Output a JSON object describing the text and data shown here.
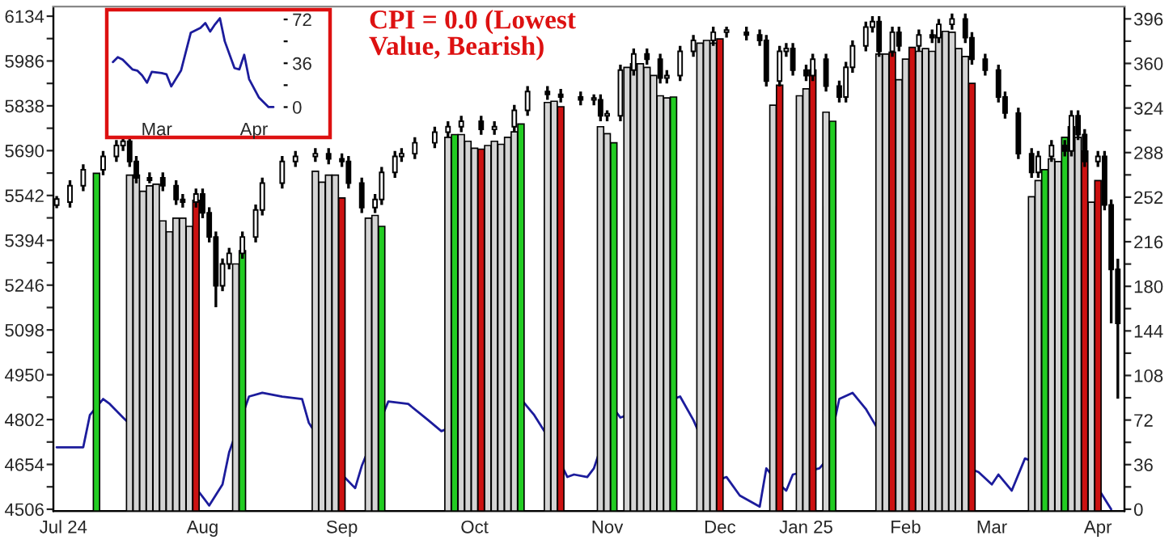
{
  "chart_data": [
    {
      "type": "candlestick",
      "annotations": [
        "CPI = 0.0 (Lowest\nValue, Bearish)"
      ],
      "categories": [
        null,
        "Jul 24",
        null,
        null,
        null,
        null,
        null,
        null,
        null,
        null,
        null,
        null,
        null,
        null,
        null,
        null,
        null,
        null,
        null,
        null,
        null,
        null,
        "Aug",
        null,
        null,
        null,
        null,
        null,
        null,
        null,
        null,
        null,
        null,
        null,
        null,
        null,
        null,
        null,
        null,
        null,
        null,
        null,
        null,
        "Sep",
        null,
        null,
        null,
        null,
        null,
        null,
        null,
        null,
        null,
        null,
        null,
        null,
        null,
        null,
        null,
        null,
        null,
        null,
        null,
        "Oct",
        null,
        null,
        null,
        null,
        null,
        null,
        null,
        null,
        null,
        null,
        null,
        null,
        null,
        null,
        null,
        null,
        null,
        null,
        null,
        "Nov",
        null,
        null,
        null,
        null,
        null,
        null,
        null,
        null,
        null,
        null,
        null,
        null,
        null,
        null,
        null,
        null,
        "Dec",
        null,
        null,
        null,
        null,
        null,
        null,
        null,
        null,
        null,
        null,
        null,
        null,
        "Jan 25",
        null,
        null,
        null,
        null,
        null,
        null,
        null,
        null,
        null,
        null,
        null,
        null,
        null,
        null,
        "Feb",
        null,
        null,
        null,
        null,
        null,
        null,
        null,
        null,
        null,
        null,
        null,
        null,
        "Mar",
        null,
        null,
        null,
        null,
        null,
        null,
        null,
        null,
        null,
        null,
        null,
        null,
        null,
        null,
        null,
        "Apr",
        null,
        null,
        null,
        null
      ],
      "ylim": [
        4500,
        6166
      ],
      "yticks": [
        4506,
        {
          "value": 4580,
          "label": null
        },
        4654,
        {
          "value": 4728,
          "label": null
        },
        4802,
        {
          "value": 4876,
          "label": null
        },
        4950,
        {
          "value": 5024,
          "label": null
        },
        5098,
        {
          "value": 5172,
          "label": null
        },
        5246,
        {
          "value": 5320,
          "label": null
        },
        5394,
        {
          "value": 5468,
          "label": null
        },
        5542,
        {
          "value": 5616,
          "label": null
        },
        5690,
        {
          "value": 5764,
          "label": null
        },
        5838,
        {
          "value": 5912,
          "label": null
        },
        5986,
        {
          "value": 6060,
          "label": null
        },
        6134
      ],
      "y2lim": [
        -1.5,
        406
      ],
      "y2ticks": [
        0,
        {
          "value": 18,
          "label": null
        },
        36,
        {
          "value": 54,
          "label": null
        },
        72,
        {
          "value": 90,
          "label": null
        },
        108,
        {
          "value": 126,
          "label": null
        },
        144,
        {
          "value": 162,
          "label": null
        },
        180,
        {
          "value": 198,
          "label": null
        },
        216,
        {
          "value": 234,
          "label": null
        },
        252,
        {
          "value": 270,
          "label": null
        },
        288,
        {
          "value": 306,
          "label": null
        },
        324,
        {
          "value": 342,
          "label": null
        },
        360,
        {
          "value": 378,
          "label": null
        },
        396
      ],
      "series": [
        {
          "type": "line",
          "axis": "y2",
          "color": "#1c1c9c",
          "values": [
            50,
            null,
            null,
            null,
            50,
            76,
            null,
            89,
            85,
            null,
            74,
            null,
            null,
            null,
            null,
            null,
            null,
            null,
            null,
            null,
            null,
            17,
            null,
            3,
            null,
            20,
            46,
            null,
            null,
            91,
            null,
            94,
            null,
            null,
            91,
            null,
            null,
            89,
            70,
            null,
            null,
            null,
            null,
            28,
            null,
            17,
            35,
            null,
            null,
            null,
            87,
            null,
            null,
            85,
            null,
            null,
            72,
            null,
            63,
            null,
            null,
            null,
            null,
            null,
            null,
            null,
            null,
            null,
            null,
            null,
            89,
            null,
            76,
            null,
            59,
            null,
            null,
            26,
            28,
            null,
            26,
            33,
            null,
            null,
            81,
            74,
            null,
            null,
            null,
            null,
            null,
            null,
            null,
            89,
            91,
            null,
            72,
            null,
            null,
            null,
            24,
            26,
            null,
            11,
            null,
            null,
            2,
            33,
            null,
            20,
            15,
            28,
            null,
            null,
            null,
            33,
            39,
            null,
            89,
            null,
            94,
            null,
            81,
            null,
            63,
            null,
            null,
            null,
            null,
            null,
            null,
            null,
            null,
            null,
            null,
            null,
            null,
            null,
            null,
            30,
            null,
            20,
            28,
            null,
            15,
            null,
            41,
            null,
            null,
            null,
            null,
            null,
            null,
            null,
            null,
            null,
            null,
            17,
            null,
            0,
            null,
            null
          ]
        },
        {
          "type": "bar",
          "values": [
            null,
            null,
            null,
            null,
            null,
            null,
            5615,
            null,
            null,
            null,
            null,
            5609,
            5609,
            5556,
            5574,
            5579,
            5458,
            5422,
            5467,
            5467,
            5440,
            5526,
            null,
            null,
            null,
            null,
            null,
            5316,
            5360,
            null,
            null,
            null,
            null,
            null,
            null,
            null,
            null,
            null,
            null,
            5622,
            5586,
            5609,
            5609,
            5534,
            null,
            null,
            null,
            5467,
            5476,
            5440,
            null,
            null,
            null,
            null,
            null,
            null,
            null,
            null,
            null,
            5734,
            5743,
            5743,
            5721,
            5698,
            5695,
            5707,
            5721,
            5711,
            5734,
            5752,
            5778,
            null,
            null,
            null,
            5849,
            5853,
            5835,
            null,
            null,
            null,
            null,
            null,
            5769,
            5746,
            5716,
            null,
            5965,
            5977,
            5977,
            5965,
            5938,
            5871,
            5864,
            5867,
            null,
            null,
            null,
            6045,
            6054,
            6045,
            6059,
            null,
            null,
            null,
            null,
            null,
            null,
            null,
            5840,
            5906,
            null,
            null,
            5871,
            5894,
            5956,
            null,
            5817,
            5787,
            null,
            null,
            null,
            null,
            null,
            null,
            6009,
            6009,
            6015,
            5924,
            5992,
            6031,
            6018,
            6027,
            6018,
            6072,
            6084,
            6081,
            6027,
            6001,
            5912,
            null,
            null,
            null,
            null,
            null,
            null,
            null,
            null,
            5538,
            5591,
            5627,
            5663,
            5654,
            5734,
            5769,
            5734,
            5689,
            5520,
            5591,
            null,
            null,
            null,
            null
          ],
          "colors": [
            null,
            null,
            null,
            null,
            null,
            null,
            "#22cc22",
            null,
            null,
            null,
            null,
            "#d4d4d4",
            "#d4d4d4",
            "#d4d4d4",
            "#d4d4d4",
            "#d4d4d4",
            "#d4d4d4",
            "#d4d4d4",
            "#d4d4d4",
            "#d4d4d4",
            "#d4d4d4",
            "#cc1111",
            null,
            null,
            null,
            null,
            null,
            "#d4d4d4",
            "#22cc22",
            null,
            null,
            null,
            null,
            null,
            null,
            null,
            null,
            null,
            null,
            "#d4d4d4",
            "#d4d4d4",
            "#d4d4d4",
            "#d4d4d4",
            "#cc1111",
            null,
            null,
            null,
            "#d4d4d4",
            "#d4d4d4",
            "#22cc22",
            null,
            null,
            null,
            null,
            null,
            null,
            null,
            null,
            null,
            "#d4d4d4",
            "#22cc22",
            "#d4d4d4",
            "#d4d4d4",
            "#d4d4d4",
            "#cc1111",
            "#d4d4d4",
            "#d4d4d4",
            "#d4d4d4",
            "#d4d4d4",
            "#d4d4d4",
            "#22cc22",
            null,
            null,
            null,
            "#d4d4d4",
            "#d4d4d4",
            "#cc1111",
            null,
            null,
            null,
            null,
            null,
            "#d4d4d4",
            "#d4d4d4",
            "#22cc22",
            null,
            "#d4d4d4",
            "#d4d4d4",
            "#d4d4d4",
            "#d4d4d4",
            "#d4d4d4",
            "#d4d4d4",
            "#d4d4d4",
            "#22cc22",
            null,
            null,
            null,
            "#d4d4d4",
            "#d4d4d4",
            "#d4d4d4",
            "#cc1111",
            null,
            null,
            null,
            null,
            null,
            null,
            null,
            "#d4d4d4",
            "#cc1111",
            null,
            null,
            "#d4d4d4",
            "#d4d4d4",
            "#cc1111",
            null,
            "#d4d4d4",
            "#22cc22",
            null,
            null,
            null,
            null,
            null,
            null,
            "#d4d4d4",
            "#d4d4d4",
            "#cc1111",
            "#d4d4d4",
            "#d4d4d4",
            "#cc1111",
            "#d4d4d4",
            "#d4d4d4",
            "#d4d4d4",
            "#d4d4d4",
            "#d4d4d4",
            "#d4d4d4",
            "#d4d4d4",
            "#d4d4d4",
            "#cc1111",
            null,
            null,
            null,
            null,
            null,
            null,
            null,
            null,
            "#d4d4d4",
            "#d4d4d4",
            "#22cc22",
            "#d4d4d4",
            "#d4d4d4",
            "#22cc22",
            "#d4d4d4",
            "#d4d4d4",
            "#cc1111",
            "#d4d4d4",
            "#cc1111",
            null,
            null,
            null,
            null
          ]
        },
        {
          "type": "candlestick",
          "color": "#000000",
          "ohlc": [
            [
              5510,
              5540,
              5500,
              5530
            ],
            null,
            [
              5520,
              5592,
              5502,
              5574
            ],
            null,
            [
              5574,
              5645,
              5556,
              5627
            ],
            null,
            null,
            [
              5627,
              5689,
              5609,
              5671
            ],
            null,
            [
              5671,
              5725,
              5653,
              5707
            ],
            [
              5707,
              5739,
              5689,
              5721
            ],
            [
              5721,
              5739,
              5636,
              5654
            ],
            [
              5654,
              5672,
              5582,
              5600
            ],
            null,
            [
              5600,
              5618,
              5582,
              5592
            ],
            null,
            [
              5600,
              5618,
              5556,
              5574
            ],
            null,
            [
              5574,
              5592,
              5511,
              5529
            ],
            [
              5529,
              5547,
              5502,
              5520
            ],
            null,
            [
              5520,
              5565,
              5502,
              5547
            ],
            [
              5547,
              5565,
              5467,
              5485
            ],
            [
              5485,
              5503,
              5387,
              5405
            ],
            [
              5405,
              5423,
              5173,
              5244
            ],
            [
              5244,
              5334,
              5226,
              5316
            ],
            [
              5316,
              5369,
              5298,
              5351
            ],
            null,
            [
              5351,
              5423,
              5333,
              5405
            ],
            null,
            [
              5405,
              5512,
              5387,
              5494
            ],
            [
              5494,
              5601,
              5476,
              5583
            ],
            null,
            null,
            [
              5583,
              5672,
              5565,
              5654
            ],
            null,
            [
              5654,
              5689,
              5636,
              5671
            ],
            null,
            null,
            [
              5671,
              5698,
              5653,
              5680
            ],
            null,
            [
              5680,
              5698,
              5645,
              5663
            ],
            null,
            [
              5663,
              5681,
              5636,
              5654
            ],
            [
              5654,
              5672,
              5565,
              5583
            ],
            null,
            [
              5583,
              5601,
              5484,
              5502
            ],
            null,
            [
              5502,
              5547,
              5484,
              5529
            ],
            [
              5529,
              5636,
              5511,
              5618
            ],
            null,
            [
              5618,
              5689,
              5600,
              5671
            ],
            [
              5671,
              5698,
              5653,
              5680
            ],
            null,
            [
              5680,
              5734,
              5662,
              5716
            ],
            null,
            null,
            [
              5716,
              5769,
              5698,
              5751
            ],
            null,
            [
              5751,
              5787,
              5733,
              5769
            ],
            null,
            [
              5769,
              5805,
              5751,
              5787
            ],
            null,
            null,
            [
              5787,
              5805,
              5742,
              5760
            ],
            null,
            [
              5760,
              5787,
              5742,
              5769
            ],
            null,
            null,
            [
              5769,
              5841,
              5751,
              5823
            ],
            null,
            [
              5823,
              5903,
              5805,
              5885
            ],
            null,
            null,
            [
              5885,
              5903,
              5858,
              5876
            ],
            null,
            [
              5876,
              5894,
              5849,
              5867
            ],
            null,
            null,
            [
              5867,
              5885,
              5840,
              5858
            ],
            null,
            [
              5858,
              5876,
              5840,
              5864
            ],
            [
              5858,
              5876,
              5787,
              5805
            ],
            [
              5805,
              5823,
              5787,
              5812
            ],
            null,
            [
              5805,
              5974,
              5787,
              5956
            ],
            null,
            [
              5956,
              6027,
              5938,
              6009
            ],
            null,
            [
              6009,
              6027,
              5974,
              5992
            ],
            null,
            [
              5992,
              6010,
              5912,
              5930
            ],
            [
              5930,
              5956,
              5912,
              5938
            ],
            null,
            [
              5938,
              6036,
              5920,
              6018
            ],
            null,
            [
              6018,
              6072,
              6000,
              6054
            ],
            null,
            null,
            [
              6054,
              6099,
              6036,
              6081
            ],
            null,
            [
              6081,
              6099,
              6063,
              6088
            ],
            null,
            null,
            [
              6081,
              6099,
              6054,
              6072
            ],
            null,
            [
              6072,
              6090,
              6036,
              6054
            ],
            [
              6054,
              6072,
              5902,
              5920
            ],
            null,
            [
              5920,
              6036,
              5902,
              6018
            ],
            [
              6018,
              6045,
              6000,
              6027
            ],
            [
              6027,
              6045,
              5938,
              5956
            ],
            null,
            [
              5956,
              5974,
              5920,
              5938
            ],
            [
              5938,
              6010,
              5920,
              5992
            ],
            null,
            [
              5992,
              6010,
              5885,
              5903
            ],
            null,
            [
              5903,
              5921,
              5849,
              5867
            ],
            [
              5867,
              5983,
              5849,
              5965
            ],
            [
              5965,
              6054,
              5947,
              6036
            ],
            null,
            [
              6036,
              6116,
              6018,
              6098
            ],
            [
              6098,
              6134,
              6080,
              6116
            ],
            [
              6116,
              6134,
              6000,
              6018
            ],
            null,
            [
              6018,
              6099,
              6000,
              6081
            ],
            [
              6081,
              6099,
              6018,
              6036
            ],
            null,
            null,
            [
              6036,
              6090,
              6018,
              6072
            ],
            null,
            [
              6072,
              6090,
              6045,
              6063
            ],
            [
              6063,
              6125,
              6045,
              6107
            ],
            null,
            [
              6107,
              6143,
              6089,
              6125
            ],
            null,
            [
              6125,
              6143,
              6045,
              6063
            ],
            [
              6063,
              6081,
              5974,
              5992
            ],
            null,
            [
              5992,
              6010,
              5938,
              5956
            ],
            null,
            [
              5956,
              5974,
              5849,
              5867
            ],
            [
              5867,
              5885,
              5796,
              5814
            ],
            null,
            [
              5814,
              5832,
              5662,
              5680
            ],
            null,
            [
              5680,
              5698,
              5600,
              5618
            ],
            [
              5618,
              5689,
              5600,
              5671
            ],
            null,
            [
              5671,
              5725,
              5653,
              5707
            ],
            null,
            [
              5707,
              5725,
              5671,
              5689
            ],
            [
              5689,
              5823,
              5671,
              5805
            ],
            [
              5805,
              5823,
              5725,
              5743
            ],
            [
              5743,
              5761,
              5636,
              5654
            ],
            null,
            [
              5654,
              5689,
              5636,
              5671
            ],
            [
              5671,
              5689,
              5493,
              5511
            ],
            [
              5511,
              5529,
              5120,
              5298
            ],
            [
              5298,
              5333,
              4871,
              5120
            ],
            null
          ]
        }
      ]
    },
    {
      "type": "line",
      "ylim": [
        -5,
        76
      ],
      "categories": [
        null,
        null,
        null,
        null,
        null,
        null,
        null,
        null,
        null,
        null,
        "Mar",
        null,
        null,
        null,
        null,
        null,
        null,
        null,
        null,
        null,
        null,
        null,
        null,
        null,
        null,
        null,
        null,
        null,
        null,
        null,
        "Apr",
        null,
        null,
        null,
        null
      ],
      "yticks": [
        0,
        {
          "value": 18,
          "label": null
        },
        36,
        {
          "value": 54,
          "label": null
        },
        72
      ],
      "series": [
        {
          "color": "#1c1c9c",
          "values": [
            null,
            37,
            41,
            39,
            null,
            31,
            30,
            26,
            20,
            29,
            null,
            28,
            27,
            17,
            null,
            30,
            null,
            61,
            null,
            65,
            69,
            62,
            68,
            73,
            54,
            null,
            32,
            31,
            43,
            23,
            null,
            8,
            null,
            0,
            0
          ]
        }
      ]
    }
  ]
}
